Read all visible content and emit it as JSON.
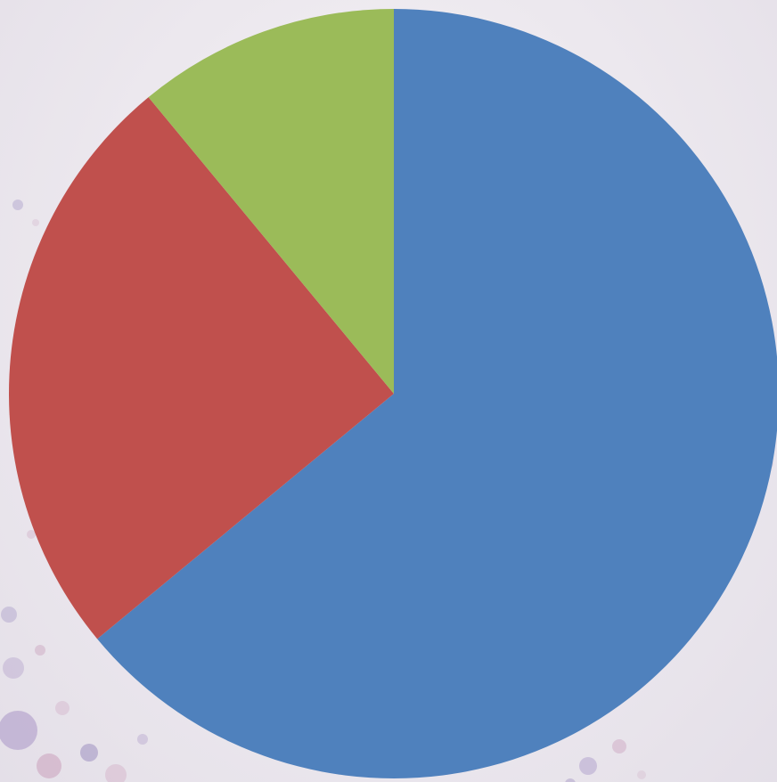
{
  "chart_data": {
    "type": "pie",
    "categories": [
      "",
      "",
      ""
    ],
    "values": [
      64,
      25,
      11
    ],
    "colors": [
      "#4f81bd",
      "#c0504d",
      "#9bbb59"
    ],
    "start": "12 o'clock",
    "direction": "clockwise",
    "legend": "none",
    "title": ""
  },
  "background": {
    "style": "textured paper with watercolor dots",
    "colors": [
      "#ece8ee",
      "#b8a6cc",
      "#d9b3c6"
    ]
  }
}
